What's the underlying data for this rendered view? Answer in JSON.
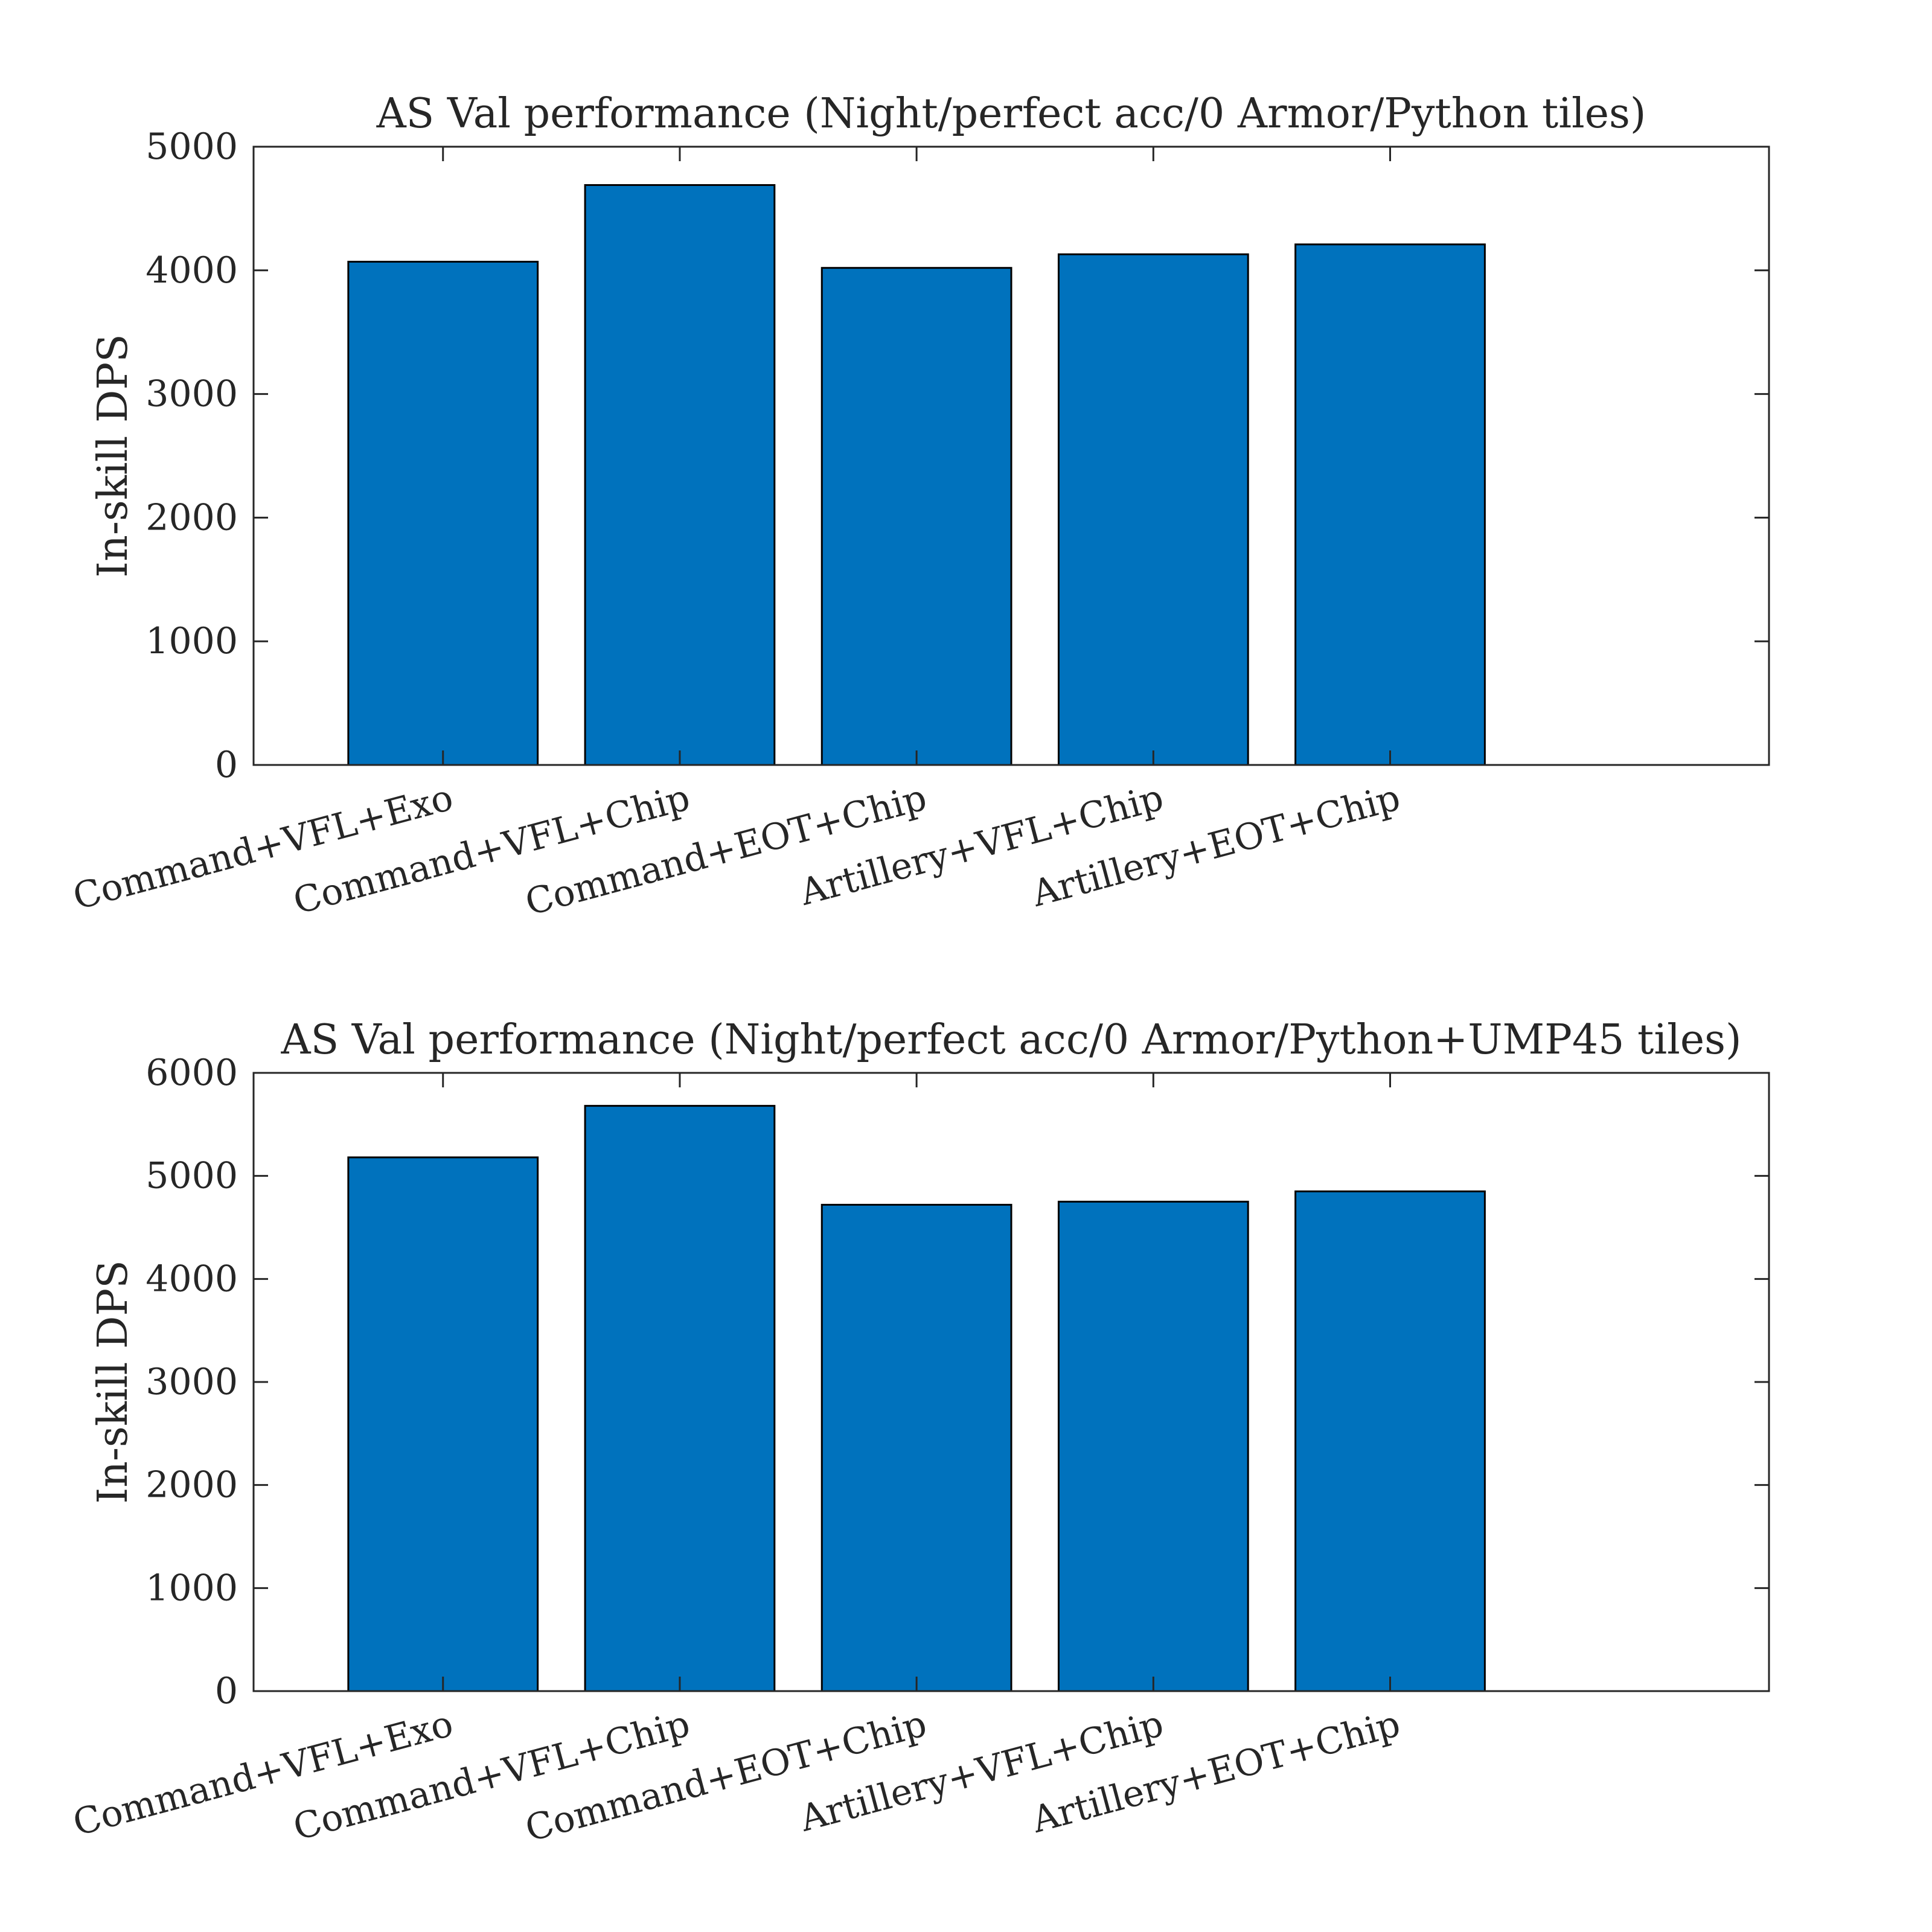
{
  "chart_data": [
    {
      "type": "bar",
      "title": "AS Val performance (Night/perfect acc/0 Armor/Python tiles)",
      "xlabel": "",
      "ylabel": "In-skill DPS",
      "categories": [
        "Command+VFL+Exo",
        "Command+VFL+Chip",
        "Command+EOT+Chip",
        "Artillery+VFL+Chip",
        "Artillery+EOT+Chip"
      ],
      "values": [
        4070,
        4690,
        4020,
        4130,
        4210
      ],
      "ylim": [
        0,
        5000
      ],
      "yticks": [
        "0",
        "1000",
        "2000",
        "3000",
        "4000",
        "5000"
      ],
      "xlim": [
        0.2,
        6.6
      ],
      "bar_color": "#0072BD",
      "grid": false,
      "legend": "none"
    },
    {
      "type": "bar",
      "title": "AS Val performance (Night/perfect acc/0 Armor/Python+UMP45 tiles)",
      "xlabel": "",
      "ylabel": "In-skill DPS",
      "categories": [
        "Command+VFL+Exo",
        "Command+VFL+Chip",
        "Command+EOT+Chip",
        "Artillery+VFL+Chip",
        "Artillery+EOT+Chip"
      ],
      "values": [
        5180,
        5680,
        4720,
        4750,
        4850
      ],
      "ylim": [
        0,
        6000
      ],
      "yticks": [
        "0",
        "1000",
        "2000",
        "3000",
        "4000",
        "5000",
        "6000"
      ],
      "xlim": [
        0.2,
        6.6
      ],
      "bar_color": "#0072BD",
      "grid": false,
      "legend": "none"
    }
  ]
}
